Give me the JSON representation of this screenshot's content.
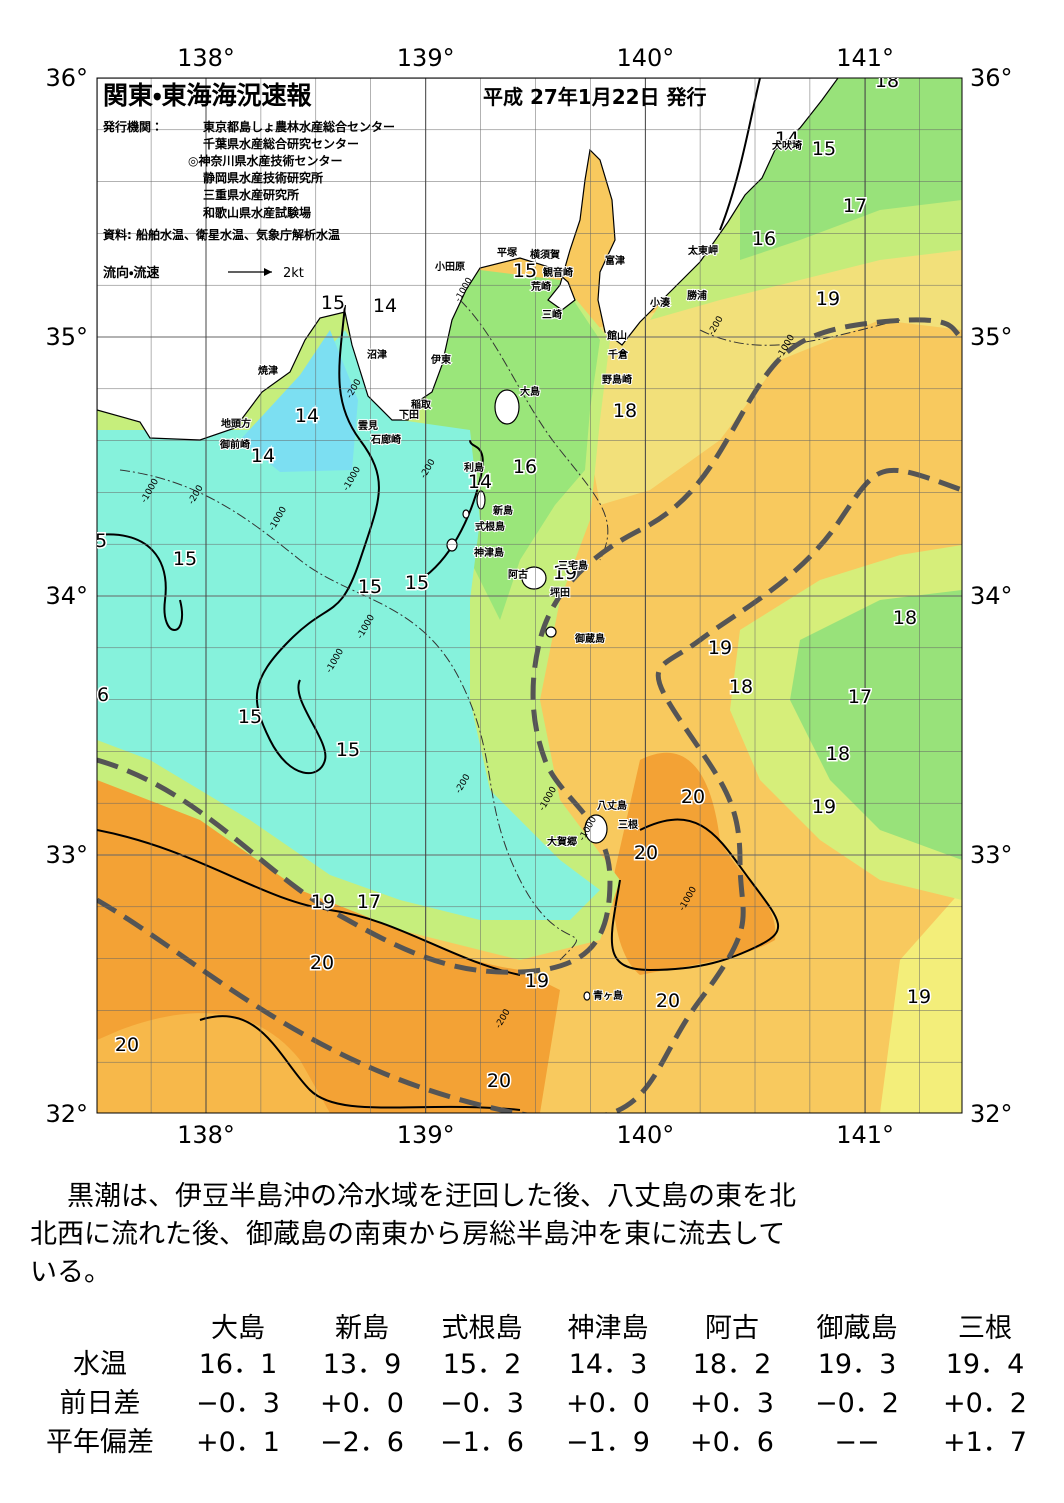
{
  "header": {
    "title": "関東・東海海況速報",
    "date": "平成 27年1月22日 発行",
    "publisher_label": "発行機関：",
    "publishers": [
      "東京都島しょ農林水産総合センター",
      "千葉県水産総合研究センター",
      "◎神奈川県水産技術センター",
      "静岡県水産技術研究所",
      "三重県水産研究所",
      "和歌山県水産試験場"
    ],
    "source": "資料: 船舶水温、衛星水温、気象庁解析水温",
    "legend_label": "流向・流速",
    "legend_scale": "2kt"
  },
  "map": {
    "lon_labels": [
      "138°",
      "139°",
      "140°",
      "141°"
    ],
    "lat_labels": [
      "36°",
      "35°",
      "34°",
      "33°",
      "32°"
    ],
    "isotherm_labels": [
      "15",
      "14",
      "14",
      "14",
      "15",
      "15",
      "15",
      "15",
      "15",
      "14",
      "16",
      "15",
      "19",
      "18",
      "14",
      "15",
      "17",
      "16",
      "19",
      "18",
      "19",
      "18",
      "17",
      "18",
      "19",
      "20",
      "20",
      "19",
      "17",
      "20",
      "19",
      "20",
      "19",
      "20",
      "20",
      "18",
      "5",
      "6"
    ],
    "place_names": [
      "犬吠埼",
      "太東岬",
      "勝浦",
      "小湊",
      "富津",
      "観音崎",
      "横須賀",
      "平塚",
      "小田原",
      "荒崎",
      "三崎",
      "館山",
      "千倉",
      "野島崎",
      "沼津",
      "伊東",
      "焼津",
      "稲取",
      "下田",
      "雲見",
      "石廊崎",
      "地頭方",
      "御前崎",
      "大島",
      "利島",
      "新島",
      "式根島",
      "神津島",
      "三宅島",
      "阿古",
      "坪田",
      "御蔵島",
      "八丈島",
      "三根",
      "大賀郷",
      "青ヶ島"
    ],
    "depth_labels": [
      "-1000",
      "-200",
      "-1000",
      "-200",
      "-1000",
      "-200",
      "-1000",
      "-200",
      "-1000",
      "-1000",
      "-1000",
      "-200",
      "-1000",
      "-1000",
      "-1000",
      "-200"
    ]
  },
  "description": {
    "lines": [
      "黒潮は、伊豆半島沖の冷水域を迂回した後、八丈島の東を北",
      "北西に流れた後、御蔵島の南東から房総半島沖を東に流去して",
      "いる。"
    ]
  },
  "table": {
    "header": [
      "大島",
      "新島",
      "式根島",
      "神津島",
      "阿古",
      "御蔵島",
      "三根"
    ],
    "rows": [
      [
        "水温",
        "16．1",
        "13．9",
        "15．2",
        "14．3",
        "18．2",
        "19．3",
        "19．4"
      ],
      [
        "前日差",
        "−0．3",
        "+0．0",
        "−0．3",
        "+0．0",
        "+0．3",
        "−0．2",
        "+0．2"
      ],
      [
        "平年偏差",
        "+0．1",
        "−2．6",
        "−1．6",
        "−1．9",
        "+0．6",
        "−−",
        "+1．7"
      ]
    ]
  }
}
